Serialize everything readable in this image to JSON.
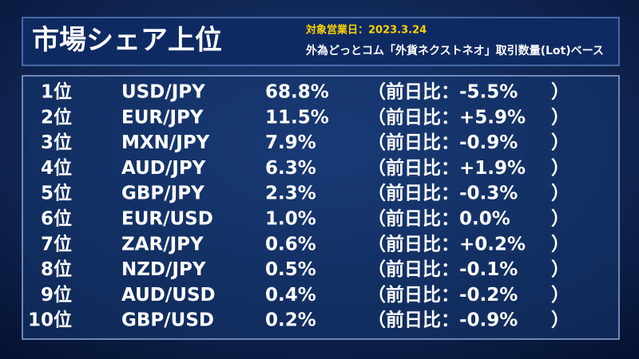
{
  "header": {
    "title": "市場シェア上位",
    "date": "対象営業日：2023.3.24",
    "subtitle": "外為どっとコム「外貨ネクストネオ」取引数量(Lot)ベース"
  },
  "table": {
    "rows": [
      [
        "1位",
        "USD/JPY",
        "68.8%",
        "（前日比：-5.5%",
        "）"
      ],
      [
        "2位",
        "EUR/JPY",
        "11.5%",
        "（前日比：+5.9%",
        "）"
      ],
      [
        "3位",
        "MXN/JPY",
        "7.9%",
        "（前日比：-0.9%",
        "）"
      ],
      [
        "4位",
        "AUD/JPY",
        "6.3%",
        "（前日比：+1.9%",
        "）"
      ],
      [
        "5位",
        "GBP/JPY",
        "2.3%",
        "（前日比：-0.3%",
        "）"
      ],
      [
        "6位",
        "EUR/USD",
        "1.0%",
        "（前日比：0.0%",
        "）"
      ],
      [
        "7位",
        "ZAR/JPY",
        "0.6%",
        "（前日比：+0.2%",
        "）"
      ],
      [
        "8位",
        "NZD/JPY",
        "0.5%",
        "（前日比：-0.1%",
        "）"
      ],
      [
        "9位",
        "AUD/USD",
        "0.4%",
        "（前日比：-0.2%",
        "）"
      ],
      [
        "10位",
        "GBP/USD",
        "0.2%",
        "（前日比：-0.9%",
        "）"
      ]
    ]
  }
}
